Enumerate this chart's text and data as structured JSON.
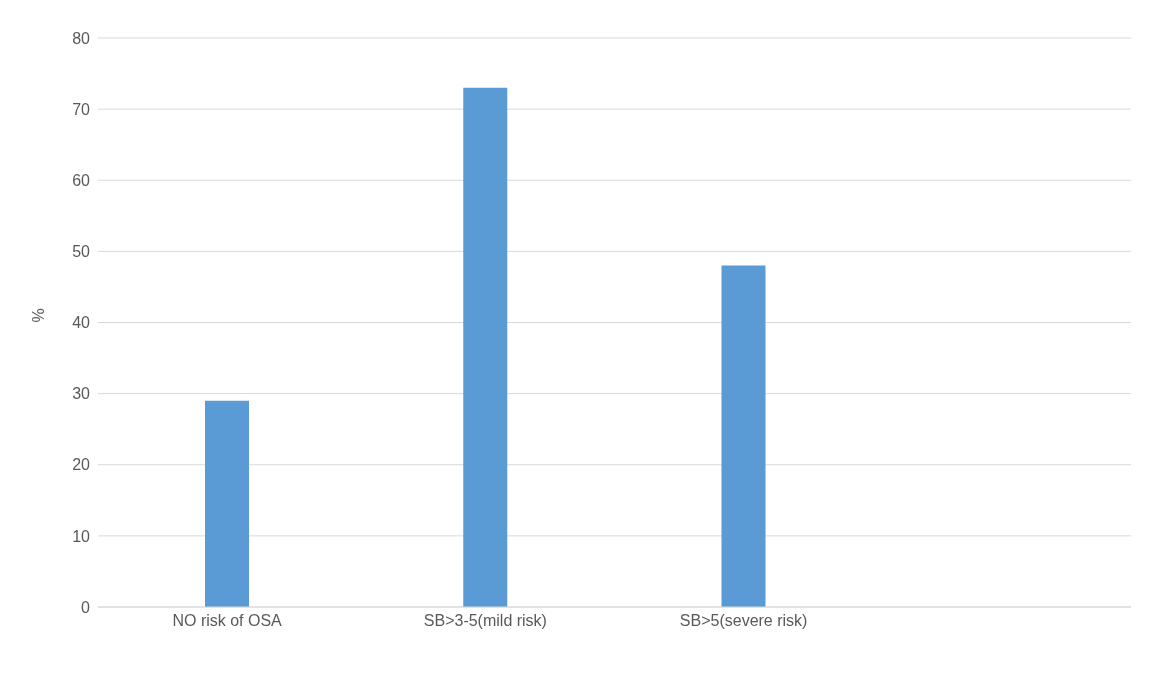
{
  "chart_data": {
    "type": "bar",
    "ylabel": "%",
    "categories": [
      "NO risk of OSA",
      "SB>3-5(mild risk)",
      "SB>5(severe risk)",
      null
    ],
    "values": [
      29,
      73,
      48,
      null
    ],
    "color": "#5b9bd5",
    "ylim": [
      0,
      80
    ],
    "yticks": [
      0,
      10,
      20,
      30,
      40,
      50,
      60,
      70,
      80
    ],
    "grid": "y"
  }
}
